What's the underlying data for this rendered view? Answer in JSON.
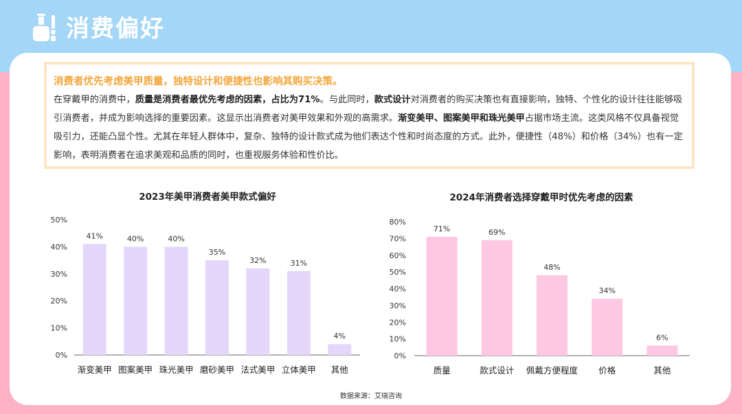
{
  "header": {
    "title": "消费偏好",
    "icon": "nail-polish-icon"
  },
  "summary": {
    "headline": "消费者优先考虑美甲质量，独特设计和便捷性也影响其购买决策。",
    "body_segments": [
      {
        "text": "在穿戴甲的消费中，",
        "bold": false
      },
      {
        "text": "质量是消费者最优先考虑的因素，占比为71%",
        "bold": true
      },
      {
        "text": "。与此同时，",
        "bold": false
      },
      {
        "text": "款式设计",
        "bold": true
      },
      {
        "text": "对消费者的购买决策也有直接影响，独特、个性化的设计往往能够吸引消费者，并成为影响选择的重要因素。这显示出消费者对美甲效果和外观的高需求。",
        "bold": false
      },
      {
        "text": "渐变美甲、图案美甲和珠光美甲",
        "bold": true
      },
      {
        "text": "占据市场主流。这类风格不仅具备视觉吸引力，还能凸显个性。尤其在年轻人群体中，复杂、独特的设计款式成为他们表达个性和时尚态度的方式。此外，便捷性（48%）和价格（34%）也有一定影响，表明消费者在追求美观和品质的同时，也重视服务体验和性价比。",
        "bold": false
      }
    ]
  },
  "chart_data": [
    {
      "type": "bar",
      "title": "2023年美甲消费者美甲款式偏好",
      "categories": [
        "渐变美甲",
        "图案美甲",
        "珠光美甲",
        "磨砂美甲",
        "法式美甲",
        "立体美甲",
        "其他"
      ],
      "values": [
        41,
        40,
        40,
        35,
        32,
        31,
        4
      ],
      "value_labels": [
        "41%",
        "40%",
        "40%",
        "35%",
        "32%",
        "31%",
        "4%"
      ],
      "yticks": [
        "0%",
        "10%",
        "20%",
        "30%",
        "40%",
        "50%"
      ],
      "ylim": [
        0,
        50
      ],
      "color": "#e4d7fb",
      "grid": false
    },
    {
      "type": "bar",
      "title": "2024年消费者选择穿戴甲时优先考虑的因素",
      "categories": [
        "质量",
        "款式设计",
        "佩戴方便程度",
        "价格",
        "其他"
      ],
      "values": [
        71,
        69,
        48,
        34,
        6
      ],
      "value_labels": [
        "71%",
        "69%",
        "48%",
        "34%",
        "6%"
      ],
      "yticks": [
        "0%",
        "10%",
        "20%",
        "30%",
        "40%",
        "50%",
        "60%",
        "70%",
        "80%"
      ],
      "ylim": [
        0,
        80
      ],
      "color": "#fec7e2",
      "grid": false
    }
  ],
  "source": "数据来源：艾瑞咨询"
}
